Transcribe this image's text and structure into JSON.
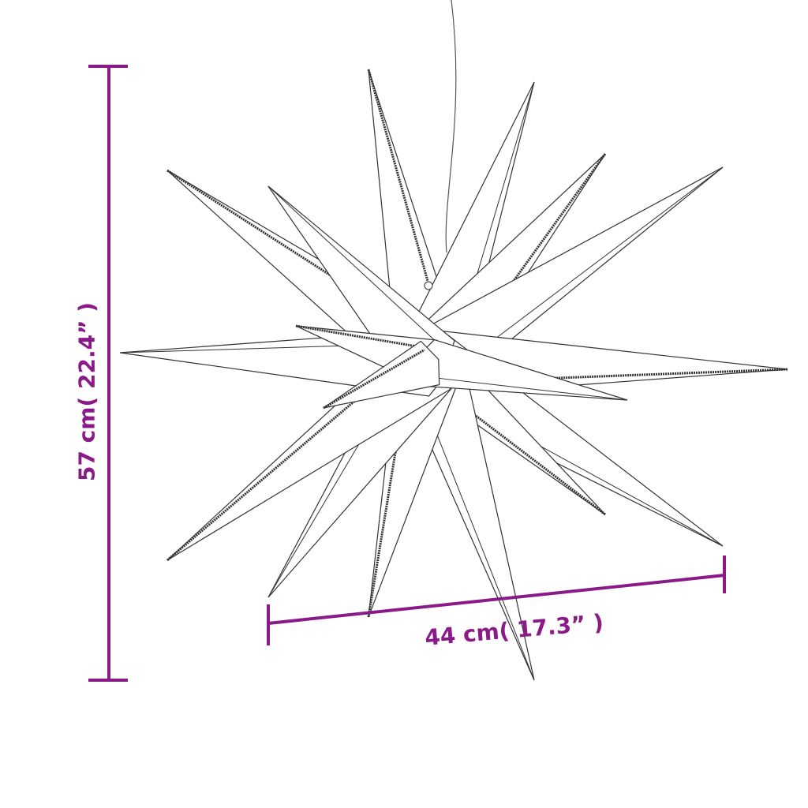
{
  "dimensions": {
    "height_label": "57 cm( 22.4” )",
    "width_label": "44 cm( 17.3” )"
  },
  "colors": {
    "dimension": "#8b1a89",
    "outline": "#333333"
  },
  "image": {
    "subject": "star-lamp-icon"
  }
}
